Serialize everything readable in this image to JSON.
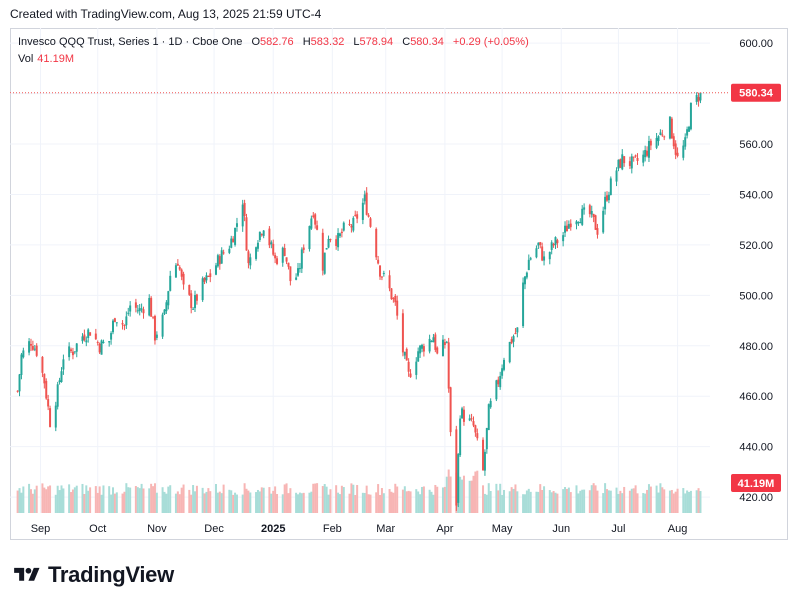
{
  "caption": "Created with TradingView.com, Aug 13, 2025 21:59 UTC-4",
  "legend": {
    "symbol": "Invesco QQQ Trust, Series 1 · 1D · Cboe One",
    "o_label": "O",
    "o_value": "582.76",
    "h_label": "H",
    "h_value": "583.32",
    "l_label": "L",
    "l_value": "578.94",
    "c_label": "C",
    "c_value": "580.34",
    "change": "+0.29 (+0.05%)",
    "vol_label": "Vol",
    "vol_value": "41.19M"
  },
  "colors": {
    "up": "#26a69a",
    "down": "#ef5350",
    "grid": "#f0f3fa",
    "price_line": "#ef5350",
    "badge": "#f23645"
  },
  "brand": "TradingView",
  "chart_data": {
    "type": "candlestick",
    "y_ticks": [
      "600.00",
      "580.00",
      "560.00",
      "540.00",
      "520.00",
      "500.00",
      "480.00",
      "460.00",
      "440.00",
      "420.00"
    ],
    "y_range": [
      403,
      606
    ],
    "x_ticks": [
      {
        "label": "Sep",
        "date": "2024-09-01",
        "bold": false
      },
      {
        "label": "Oct",
        "date": "2024-10-01",
        "bold": false
      },
      {
        "label": "Nov",
        "date": "2024-11-01",
        "bold": false
      },
      {
        "label": "Dec",
        "date": "2024-12-01",
        "bold": false
      },
      {
        "label": "2025",
        "date": "2025-01-01",
        "bold": true
      },
      {
        "label": "Feb",
        "date": "2025-02-01",
        "bold": false
      },
      {
        "label": "Mar",
        "date": "2025-03-01",
        "bold": false
      },
      {
        "label": "Apr",
        "date": "2025-04-01",
        "bold": false
      },
      {
        "label": "May",
        "date": "2025-05-01",
        "bold": false
      },
      {
        "label": "Jun",
        "date": "2025-06-01",
        "bold": false
      },
      {
        "label": "Jul",
        "date": "2025-07-01",
        "bold": false
      },
      {
        "label": "Aug",
        "date": "2025-08-01",
        "bold": false
      }
    ],
    "last_price_label": "580.34",
    "last_volume_label": "41.19M",
    "close_series": [
      {
        "date": "2024-08-20",
        "close": 462
      },
      {
        "date": "2024-08-22",
        "close": 476
      },
      {
        "date": "2024-08-27",
        "close": 482
      },
      {
        "date": "2024-08-30",
        "close": 478
      },
      {
        "date": "2024-09-03",
        "close": 466
      },
      {
        "date": "2024-09-06",
        "close": 450
      },
      {
        "date": "2024-09-10",
        "close": 462
      },
      {
        "date": "2024-09-13",
        "close": 476
      },
      {
        "date": "2024-09-18",
        "close": 478
      },
      {
        "date": "2024-09-23",
        "close": 484
      },
      {
        "date": "2024-09-27",
        "close": 486
      },
      {
        "date": "2024-10-02",
        "close": 480
      },
      {
        "date": "2024-10-07",
        "close": 482
      },
      {
        "date": "2024-10-10",
        "close": 492
      },
      {
        "date": "2024-10-15",
        "close": 488
      },
      {
        "date": "2024-10-18",
        "close": 496
      },
      {
        "date": "2024-10-23",
        "close": 494
      },
      {
        "date": "2024-10-28",
        "close": 498
      },
      {
        "date": "2024-10-31",
        "close": 484
      },
      {
        "date": "2024-11-05",
        "close": 492
      },
      {
        "date": "2024-11-08",
        "close": 508
      },
      {
        "date": "2024-11-12",
        "close": 514
      },
      {
        "date": "2024-11-15",
        "close": 502
      },
      {
        "date": "2024-11-20",
        "close": 496
      },
      {
        "date": "2024-11-25",
        "close": 504
      },
      {
        "date": "2024-11-29",
        "close": 508
      },
      {
        "date": "2024-12-04",
        "close": 515
      },
      {
        "date": "2024-12-09",
        "close": 520
      },
      {
        "date": "2024-12-12",
        "close": 526
      },
      {
        "date": "2024-12-16",
        "close": 538
      },
      {
        "date": "2024-12-19",
        "close": 512
      },
      {
        "date": "2024-12-23",
        "close": 522
      },
      {
        "date": "2024-12-27",
        "close": 528
      },
      {
        "date": "2025-01-02",
        "close": 514
      },
      {
        "date": "2025-01-07",
        "close": 518
      },
      {
        "date": "2025-01-10",
        "close": 506
      },
      {
        "date": "2025-01-14",
        "close": 508
      },
      {
        "date": "2025-01-17",
        "close": 520
      },
      {
        "date": "2025-01-22",
        "close": 534
      },
      {
        "date": "2025-01-27",
        "close": 512
      },
      {
        "date": "2025-01-30",
        "close": 524
      },
      {
        "date": "2025-02-04",
        "close": 522
      },
      {
        "date": "2025-02-07",
        "close": 526
      },
      {
        "date": "2025-02-12",
        "close": 528
      },
      {
        "date": "2025-02-18",
        "close": 538
      },
      {
        "date": "2025-02-21",
        "close": 528
      },
      {
        "date": "2025-02-26",
        "close": 510
      },
      {
        "date": "2025-03-03",
        "close": 502
      },
      {
        "date": "2025-03-06",
        "close": 496
      },
      {
        "date": "2025-03-10",
        "close": 478
      },
      {
        "date": "2025-03-13",
        "close": 468
      },
      {
        "date": "2025-03-18",
        "close": 478
      },
      {
        "date": "2025-03-21",
        "close": 480
      },
      {
        "date": "2025-03-26",
        "close": 484
      },
      {
        "date": "2025-03-28",
        "close": 476
      },
      {
        "date": "2025-04-02",
        "close": 482
      },
      {
        "date": "2025-04-04",
        "close": 444
      },
      {
        "date": "2025-04-07",
        "close": 418
      },
      {
        "date": "2025-04-09",
        "close": 454
      },
      {
        "date": "2025-04-11",
        "close": 452
      },
      {
        "date": "2025-04-16",
        "close": 448
      },
      {
        "date": "2025-04-21",
        "close": 430
      },
      {
        "date": "2025-04-24",
        "close": 454
      },
      {
        "date": "2025-04-29",
        "close": 466
      },
      {
        "date": "2025-05-02",
        "close": 476
      },
      {
        "date": "2025-05-07",
        "close": 484
      },
      {
        "date": "2025-05-09",
        "close": 486
      },
      {
        "date": "2025-05-12",
        "close": 504
      },
      {
        "date": "2025-05-15",
        "close": 514
      },
      {
        "date": "2025-05-20",
        "close": 520
      },
      {
        "date": "2025-05-23",
        "close": 514
      },
      {
        "date": "2025-05-28",
        "close": 520
      },
      {
        "date": "2025-06-02",
        "close": 524
      },
      {
        "date": "2025-06-06",
        "close": 530
      },
      {
        "date": "2025-06-11",
        "close": 532
      },
      {
        "date": "2025-06-16",
        "close": 532
      },
      {
        "date": "2025-06-20",
        "close": 526
      },
      {
        "date": "2025-06-25",
        "close": 540
      },
      {
        "date": "2025-06-30",
        "close": 550
      },
      {
        "date": "2025-07-03",
        "close": 554
      },
      {
        "date": "2025-07-09",
        "close": 552
      },
      {
        "date": "2025-07-14",
        "close": 555
      },
      {
        "date": "2025-07-18",
        "close": 560
      },
      {
        "date": "2025-07-23",
        "close": 564
      },
      {
        "date": "2025-07-28",
        "close": 568
      },
      {
        "date": "2025-08-01",
        "close": 554
      },
      {
        "date": "2025-08-05",
        "close": 560
      },
      {
        "date": "2025-08-08",
        "close": 574
      },
      {
        "date": "2025-08-13",
        "close": 580.34
      }
    ]
  }
}
